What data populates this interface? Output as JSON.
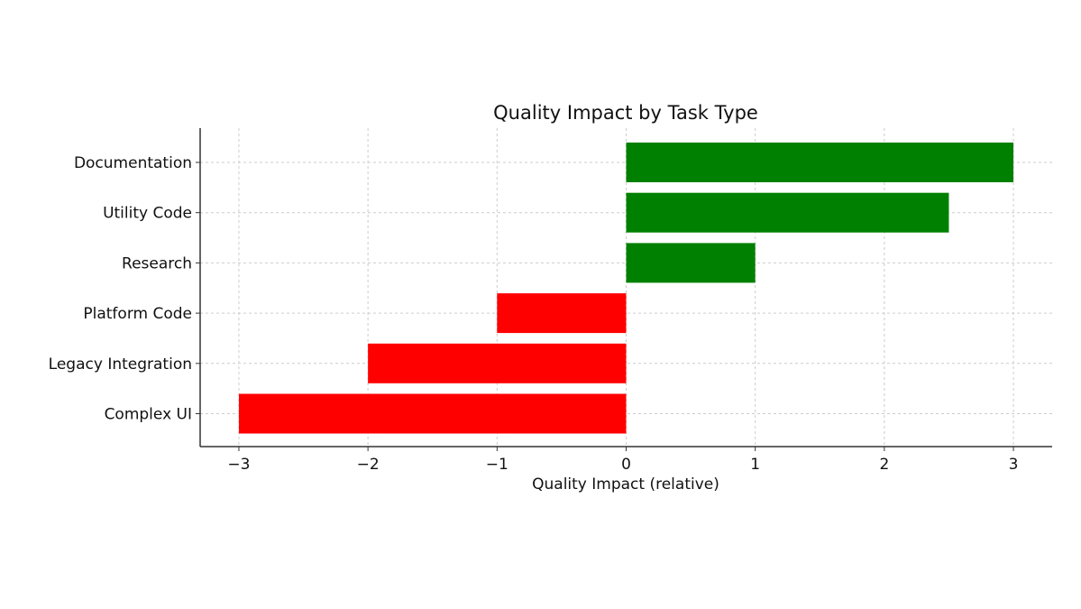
{
  "chart_data": {
    "type": "bar",
    "orientation": "horizontal",
    "title": "Quality Impact by Task Type",
    "xlabel": "Quality Impact (relative)",
    "ylabel": "",
    "categories": [
      "Documentation",
      "Utility Code",
      "Research",
      "Platform Code",
      "Legacy Integration",
      "Complex UI"
    ],
    "values": [
      3,
      2.5,
      1,
      -1,
      -2,
      -3
    ],
    "xlim": [
      -3.3,
      3.3
    ],
    "xticks": [
      -3,
      -2,
      -1,
      0,
      1,
      2,
      3
    ],
    "xtick_labels": [
      "−3",
      "−2",
      "−1",
      "0",
      "1",
      "2",
      "3"
    ],
    "grid": true,
    "colors": {
      "positive": "#008000",
      "negative": "#ff0000",
      "grid": "#cccccc",
      "axis": "#333333"
    }
  }
}
